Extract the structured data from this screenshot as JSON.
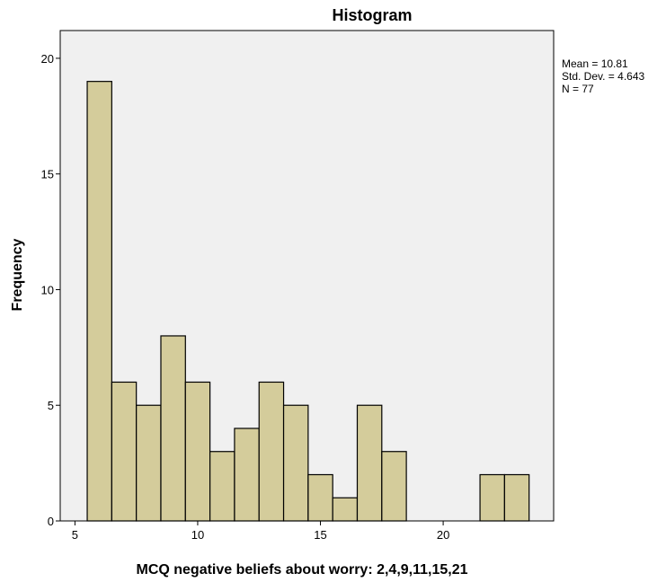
{
  "chart_data": {
    "type": "bar",
    "title": "Histogram",
    "xlabel": "MCQ negative beliefs about worry: 2,4,9,11,15,21",
    "ylabel": "Frequency",
    "bin_width": 1,
    "bins": [
      {
        "start": 5.5,
        "end": 6.5,
        "value": 19
      },
      {
        "start": 6.5,
        "end": 7.5,
        "value": 6
      },
      {
        "start": 7.5,
        "end": 8.5,
        "value": 5
      },
      {
        "start": 8.5,
        "end": 9.5,
        "value": 8
      },
      {
        "start": 9.5,
        "end": 10.5,
        "value": 6
      },
      {
        "start": 10.5,
        "end": 11.5,
        "value": 3
      },
      {
        "start": 11.5,
        "end": 12.5,
        "value": 4
      },
      {
        "start": 12.5,
        "end": 13.5,
        "value": 6
      },
      {
        "start": 13.5,
        "end": 14.5,
        "value": 5
      },
      {
        "start": 14.5,
        "end": 15.5,
        "value": 2
      },
      {
        "start": 15.5,
        "end": 16.5,
        "value": 1
      },
      {
        "start": 16.5,
        "end": 17.5,
        "value": 5
      },
      {
        "start": 17.5,
        "end": 18.5,
        "value": 3
      },
      {
        "start": 21.5,
        "end": 22.5,
        "value": 2
      },
      {
        "start": 22.5,
        "end": 23.5,
        "value": 2
      }
    ],
    "xlim": [
      4.4,
      24.5
    ],
    "ylim": [
      0,
      21.2
    ],
    "xticks": [
      5,
      10,
      15,
      20
    ],
    "yticks": [
      0,
      5,
      10,
      15,
      20
    ],
    "grid": false,
    "stats": {
      "mean": "Mean = 10.81",
      "std_dev": "Std. Dev. = 4.643",
      "n": "N = 77"
    },
    "colors": {
      "bar_fill": "#d4cc9b",
      "bar_stroke": "#000000",
      "plot_background": "#f0f0f0"
    }
  }
}
